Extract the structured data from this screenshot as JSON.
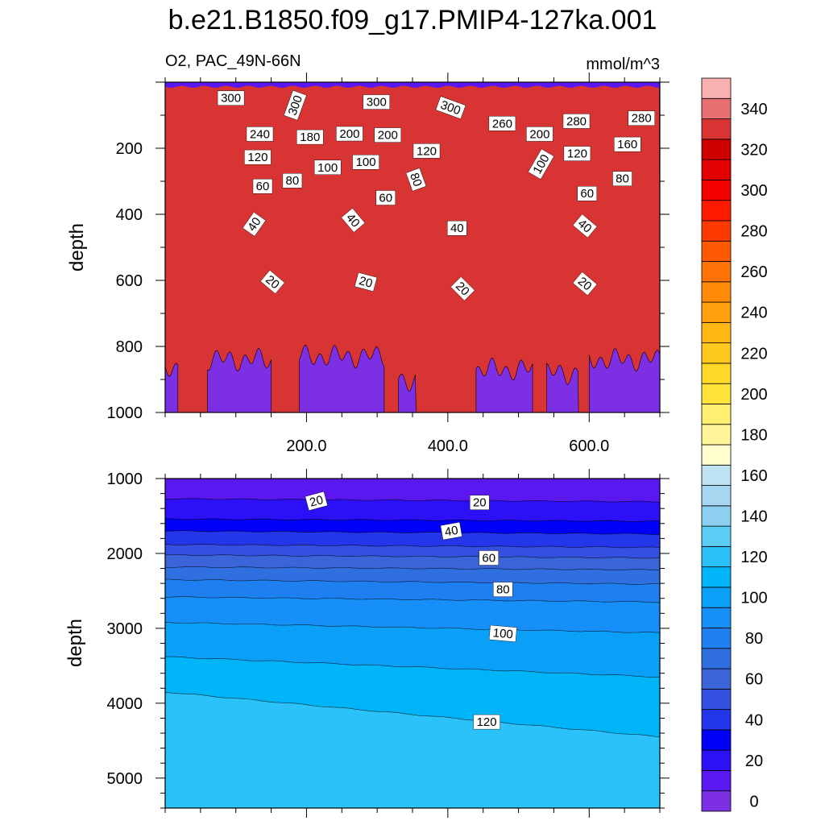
{
  "title": "b.e21.B1850.f09_g17.PMIP4-127ka.001",
  "left_subtitle": "O2, PAC_49N-66N",
  "right_subtitle": "mmol/m^3",
  "chart_data": [
    {
      "type": "contour",
      "panel": "upper",
      "variable": "O2",
      "region": "PAC_49N-66N",
      "units": "mmol/m^3",
      "xlim": [
        0,
        700
      ],
      "x_ticks": [
        {
          "value": 200,
          "label": "200.0"
        },
        {
          "value": 400,
          "label": "400.0"
        },
        {
          "value": 600,
          "label": "600.0"
        }
      ],
      "ylabel": "depth",
      "ylim": [
        0,
        1000
      ],
      "y_reversed": true,
      "y_ticks": [
        {
          "value": 200,
          "label": "200"
        },
        {
          "value": 400,
          "label": "400"
        },
        {
          "value": 600,
          "label": "600"
        },
        {
          "value": 800,
          "label": "800"
        },
        {
          "value": 1000,
          "label": "1000"
        }
      ],
      "contour_labels": [
        {
          "text": "300",
          "x": 93,
          "y": 48
        },
        {
          "text": "300",
          "x": 184,
          "y": 70
        },
        {
          "text": "300",
          "x": 299,
          "y": 60
        },
        {
          "text": "300",
          "x": 404,
          "y": 77
        },
        {
          "text": "240",
          "x": 134,
          "y": 157
        },
        {
          "text": "180",
          "x": 205,
          "y": 166
        },
        {
          "text": "200",
          "x": 261,
          "y": 156
        },
        {
          "text": "200",
          "x": 315,
          "y": 160
        },
        {
          "text": "260",
          "x": 477,
          "y": 125
        },
        {
          "text": "200",
          "x": 530,
          "y": 157
        },
        {
          "text": "280",
          "x": 582,
          "y": 118
        },
        {
          "text": "280",
          "x": 674,
          "y": 109
        },
        {
          "text": "160",
          "x": 654,
          "y": 188
        },
        {
          "text": "120",
          "x": 131,
          "y": 227
        },
        {
          "text": "100",
          "x": 230,
          "y": 258
        },
        {
          "text": "100",
          "x": 284,
          "y": 242
        },
        {
          "text": "120",
          "x": 370,
          "y": 208
        },
        {
          "text": "100",
          "x": 532,
          "y": 248
        },
        {
          "text": "120",
          "x": 583,
          "y": 216
        },
        {
          "text": "80",
          "x": 180,
          "y": 298
        },
        {
          "text": "80",
          "x": 355,
          "y": 295
        },
        {
          "text": "80",
          "x": 647,
          "y": 292
        },
        {
          "text": "60",
          "x": 138,
          "y": 315
        },
        {
          "text": "60",
          "x": 312,
          "y": 350
        },
        {
          "text": "60",
          "x": 597,
          "y": 337
        },
        {
          "text": "40",
          "x": 126,
          "y": 430
        },
        {
          "text": "40",
          "x": 266,
          "y": 418
        },
        {
          "text": "40",
          "x": 413,
          "y": 442
        },
        {
          "text": "40",
          "x": 594,
          "y": 435
        },
        {
          "text": "20",
          "x": 152,
          "y": 605
        },
        {
          "text": "20",
          "x": 284,
          "y": 605
        },
        {
          "text": "20",
          "x": 421,
          "y": 625
        },
        {
          "text": "20",
          "x": 594,
          "y": 610
        }
      ]
    },
    {
      "type": "contour",
      "panel": "lower",
      "xlim": [
        0,
        700
      ],
      "ylabel": "depth",
      "ylim": [
        1000,
        5400
      ],
      "y_reversed": true,
      "y_ticks": [
        {
          "value": 1000,
          "label": "1000"
        },
        {
          "value": 2000,
          "label": "2000"
        },
        {
          "value": 3000,
          "label": "3000"
        },
        {
          "value": 4000,
          "label": "4000"
        },
        {
          "value": 5000,
          "label": "5000"
        }
      ],
      "contour_labels": [
        {
          "text": "20",
          "x": 214,
          "y": 1300
        },
        {
          "text": "20",
          "x": 445,
          "y": 1320
        },
        {
          "text": "40",
          "x": 405,
          "y": 1700
        },
        {
          "text": "60",
          "x": 458,
          "y": 2060
        },
        {
          "text": "80",
          "x": 478,
          "y": 2480
        },
        {
          "text": "100",
          "x": 478,
          "y": 3070
        },
        {
          "text": "120",
          "x": 455,
          "y": 4250
        }
      ]
    }
  ],
  "colorbar": {
    "levels": [
      0,
      10,
      20,
      30,
      40,
      50,
      60,
      70,
      80,
      90,
      100,
      110,
      120,
      130,
      140,
      150,
      160,
      170,
      180,
      190,
      200,
      210,
      220,
      230,
      240,
      250,
      260,
      270,
      280,
      290,
      300,
      310,
      320,
      330,
      340,
      350
    ],
    "colors": [
      "#7d2fe3",
      "#5b17f0",
      "#2b10f8",
      "#0000f8",
      "#2436ea",
      "#3350e0",
      "#3a64d8",
      "#2f6fe0",
      "#1e80f0",
      "#1690f8",
      "#0aa0f8",
      "#00b4f8",
      "#2ac2f8",
      "#5ccdf5",
      "#8ccff0",
      "#a6d6f0",
      "#bfe2f3",
      "#ffffd0",
      "#fff69a",
      "#ffef70",
      "#ffe33a",
      "#ffd828",
      "#ffc81e",
      "#ffb814",
      "#ffa00c",
      "#ff8a08",
      "#ff7205",
      "#ff5a03",
      "#ff3a00",
      "#ff1a00",
      "#f60000",
      "#e20000",
      "#cf0000",
      "#d83434",
      "#e87070",
      "#f8b0b0"
    ],
    "labels": [
      "0",
      "20",
      "40",
      "60",
      "80",
      "100",
      "120",
      "140",
      "160",
      "180",
      "200",
      "220",
      "240",
      "260",
      "280",
      "300",
      "320",
      "340"
    ]
  }
}
